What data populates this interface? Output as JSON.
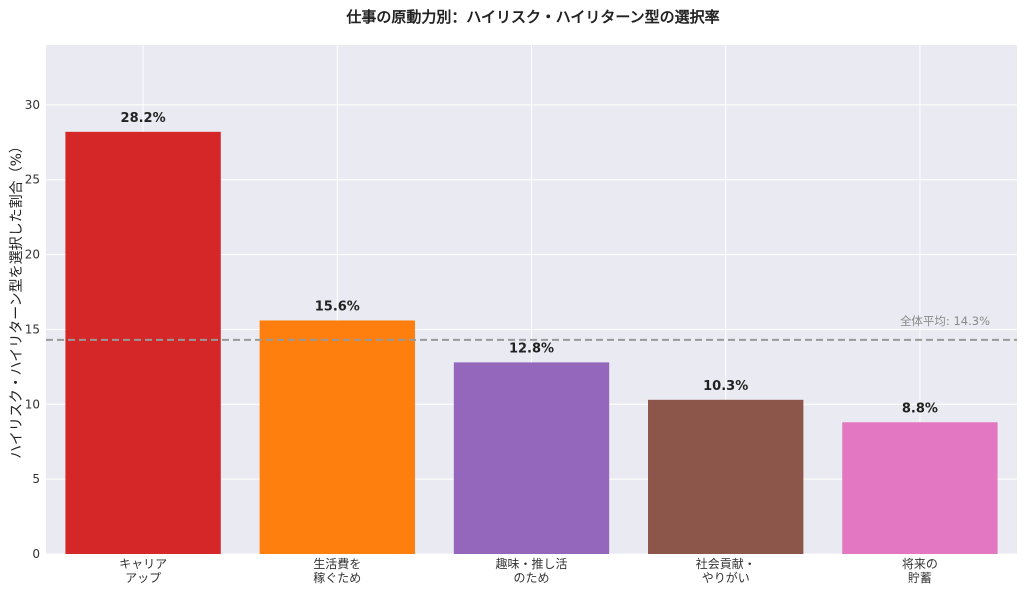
{
  "chart_data": {
    "type": "bar",
    "title": "仕事の原動力別：ハイリスク・ハイリターン型の選択率",
    "xlabel": "",
    "ylabel": "ハイリスク・ハイリターン型を選択した割合（%）",
    "ylim": [
      0,
      34
    ],
    "yticks": [
      0,
      5,
      10,
      15,
      20,
      25,
      30
    ],
    "grid": true,
    "categories": [
      [
        "キャリア",
        "アップ"
      ],
      [
        "生活費を",
        "稼ぐため"
      ],
      [
        "趣味・推し活",
        "のため"
      ],
      [
        "社会貢献・",
        "やりがい"
      ],
      [
        "将来の",
        "貯蓄"
      ]
    ],
    "values": [
      28.2,
      15.6,
      12.8,
      10.3,
      8.8
    ],
    "data_labels": [
      "28.2%",
      "15.6%",
      "12.8%",
      "10.3%",
      "8.8%"
    ],
    "colors": [
      "#d62728",
      "#ff7f0e",
      "#9467bd",
      "#8c564b",
      "#e377c2"
    ],
    "reference_line": {
      "value": 14.3,
      "label": "全体平均: 14.3%",
      "color": "#999999",
      "style": "dashed"
    },
    "background_color": "#eaeaf2"
  }
}
